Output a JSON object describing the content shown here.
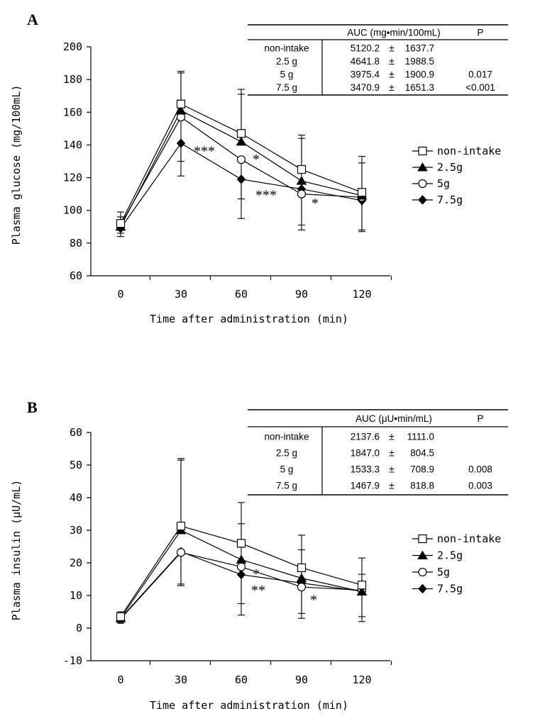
{
  "chart_data": [
    {
      "type": "line",
      "panel_label": "A",
      "xlabel": "Time after administration (min)",
      "ylabel": "Plasma glucose (mg/100mL)",
      "x": [
        0,
        30,
        60,
        90,
        120
      ],
      "x_tick_labels": [
        "0",
        "30",
        "60",
        "90",
        "120"
      ],
      "ylim": [
        60,
        200
      ],
      "y_ticks": [
        60,
        80,
        100,
        120,
        140,
        160,
        180,
        200
      ],
      "y_tick_labels": [
        "60",
        "80",
        "100",
        "120",
        "140",
        "160",
        "180",
        "200"
      ],
      "legend_position": "right",
      "series": [
        {
          "name": "non-intake",
          "marker": "open-square",
          "values": [
            92,
            165,
            147,
            125,
            111
          ],
          "error_upper": [
            99,
            185,
            174,
            146,
            133
          ]
        },
        {
          "name": "2.5g",
          "marker": "filled-triangle",
          "values": [
            90,
            161,
            142,
            118,
            109
          ],
          "error_upper": [
            96,
            184,
            171,
            144,
            129
          ]
        },
        {
          "name": "5g",
          "marker": "open-circle",
          "values": [
            91,
            157,
            131,
            110,
            108
          ],
          "error_lower": [
            86,
            130,
            107,
            91,
            88
          ]
        },
        {
          "name": "7.5g",
          "marker": "filled-diamond",
          "values": [
            89,
            141,
            119,
            113,
            106
          ],
          "error_lower": [
            84,
            121,
            95,
            88,
            87
          ]
        }
      ],
      "annotations": [
        {
          "text": "*",
          "x": 60,
          "y": 132
        },
        {
          "text": "***",
          "x": 30,
          "y": 137
        },
        {
          "text": "***",
          "x": 60,
          "y": 110
        },
        {
          "text": "*",
          "x": 90,
          "y": 105
        }
      ],
      "table": {
        "header": [
          "",
          "AUC (mg•min/100mL)",
          "P"
        ],
        "rows": [
          [
            "non-intake",
            "5120.2",
            "±",
            "1637.7",
            ""
          ],
          [
            "2.5 g",
            "4641.8",
            "±",
            "1988.5",
            ""
          ],
          [
            "5 g",
            "3975.4",
            "±",
            "1900.9",
            "0.017"
          ],
          [
            "7.5 g",
            "3470.9",
            "±",
            "1651.3",
            "<0.001"
          ]
        ]
      }
    },
    {
      "type": "line",
      "panel_label": "B",
      "xlabel": "Time after administration (min)",
      "ylabel": "Plasma insulin (μU/mL)",
      "x": [
        0,
        30,
        60,
        90,
        120
      ],
      "x_tick_labels": [
        "0",
        "30",
        "60",
        "90",
        "120"
      ],
      "ylim": [
        -10,
        60
      ],
      "y_ticks": [
        -10,
        0,
        10,
        20,
        30,
        40,
        50,
        60
      ],
      "y_tick_labels": [
        "-10",
        "0",
        "10",
        "20",
        "30",
        "40",
        "50",
        "60"
      ],
      "legend_position": "right",
      "series": [
        {
          "name": "non-intake",
          "marker": "open-square",
          "values": [
            3.5,
            31.3,
            26.0,
            18.5,
            13.2
          ],
          "error_upper": [
            5,
            52,
            38.5,
            28.5,
            21.5
          ]
        },
        {
          "name": "2.5g",
          "marker": "filled-triangle",
          "values": [
            3.0,
            30.0,
            21.0,
            15.3,
            11.2
          ],
          "error_upper": [
            4.5,
            51.5,
            32.0,
            24.0,
            16.5
          ]
        },
        {
          "name": "5g",
          "marker": "open-circle",
          "values": [
            2.8,
            23.2,
            18.8,
            12.6,
            11.6
          ],
          "error_lower": [
            1.5,
            13.0,
            7.5,
            3.0,
            3.5
          ]
        },
        {
          "name": "7.5g",
          "marker": "filled-diamond",
          "values": [
            3.0,
            23.4,
            16.4,
            13.8,
            11.3
          ],
          "error_lower": [
            1.5,
            13.5,
            4.0,
            4.5,
            2.0
          ]
        }
      ],
      "annotations": [
        {
          "text": "*",
          "x": 60,
          "y": 17
        },
        {
          "text": "**",
          "x": 60,
          "y": 12
        },
        {
          "text": "*",
          "x": 90,
          "y": 9
        }
      ],
      "table": {
        "header": [
          "",
          "AUC (μU•min/mL)",
          "P"
        ],
        "rows": [
          [
            "non-intake",
            "2137.6",
            "±",
            "1111.0",
            ""
          ],
          [
            "2.5 g",
            "1847.0",
            "±",
            "804.5",
            ""
          ],
          [
            "5 g",
            "1533.3",
            "±",
            "708.9",
            "0.008"
          ],
          [
            "7.5 g",
            "1467.9",
            "±",
            "818.8",
            "0.003"
          ]
        ]
      }
    }
  ]
}
